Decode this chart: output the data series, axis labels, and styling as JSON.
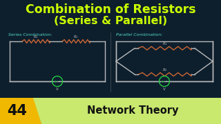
{
  "bg_color": "#0d1f2d",
  "title_line1": "Combination of Resistors",
  "title_line2": "(Series & Parallel)",
  "title_color": "#ccff00",
  "series_label": "Series Combination:",
  "parallel_label": "Parallel Combination:",
  "label_color": "#55ddcc",
  "circuit_color": "#bbbbbb",
  "resistor_color": "#cc6633",
  "voltage_color": "#22cc44",
  "number_text": "44",
  "number_bg": "#f0b800",
  "banner_color": "#c8e86e",
  "banner_text": "Network Theory",
  "banner_text_color": "#111111",
  "divider_color": "#888888"
}
